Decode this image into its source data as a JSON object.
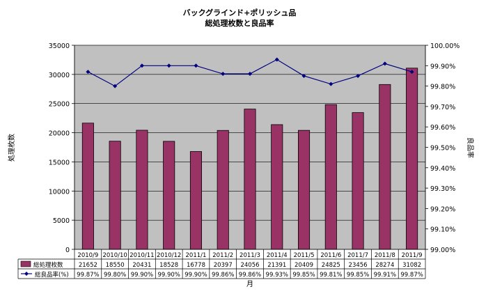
{
  "chart_data": {
    "type": "bar",
    "title_line1": "バックグラインド+ポリッシュ品",
    "title_line2": "総処理枚数と良品率",
    "xlabel": "月",
    "ylabel_left": "処理枚数",
    "ylabel_right": "良品率",
    "categories": [
      "2010/9",
      "2010/10",
      "2010/11",
      "2010/12",
      "2011/1",
      "2011/2",
      "2011/3",
      "2011/4",
      "2011/5",
      "2011/6",
      "2011/7",
      "2011/8",
      "2011/9"
    ],
    "series": [
      {
        "name": "総処理枚数",
        "type": "bar",
        "axis": "left",
        "color": "#993366",
        "values": [
          21652,
          18550,
          20431,
          18528,
          16778,
          20397,
          24056,
          21391,
          20409,
          24825,
          23456,
          28274,
          31082
        ],
        "labels": [
          "21652",
          "18550",
          "20431",
          "18528",
          "16778",
          "20397",
          "24056",
          "21391",
          "20409",
          "24825",
          "23456",
          "28274",
          "31082"
        ]
      },
      {
        "name": "総良品率(%)",
        "type": "line",
        "axis": "right",
        "color": "#000080",
        "values": [
          99.87,
          99.8,
          99.9,
          99.9,
          99.9,
          99.86,
          99.86,
          99.93,
          99.85,
          99.81,
          99.85,
          99.91,
          99.87
        ],
        "labels": [
          "99.87%",
          "99.80%",
          "99.90%",
          "99.90%",
          "99.90%",
          "99.86%",
          "99.86%",
          "99.93%",
          "99.85%",
          "99.81%",
          "99.85%",
          "99.91%",
          "99.87%"
        ]
      }
    ],
    "ylim_left": [
      0,
      35000
    ],
    "ylim_right": [
      99.0,
      100.0
    ],
    "left_ticks": [
      "0",
      "5000",
      "10000",
      "15000",
      "20000",
      "25000",
      "30000",
      "35000"
    ],
    "right_ticks": [
      "99.00%",
      "99.10%",
      "99.20%",
      "99.30%",
      "99.40%",
      "99.50%",
      "99.60%",
      "99.70%",
      "99.80%",
      "99.90%",
      "100.00%"
    ],
    "plot_background": "#c0c0c0",
    "grid": true,
    "legend": "data-table"
  }
}
